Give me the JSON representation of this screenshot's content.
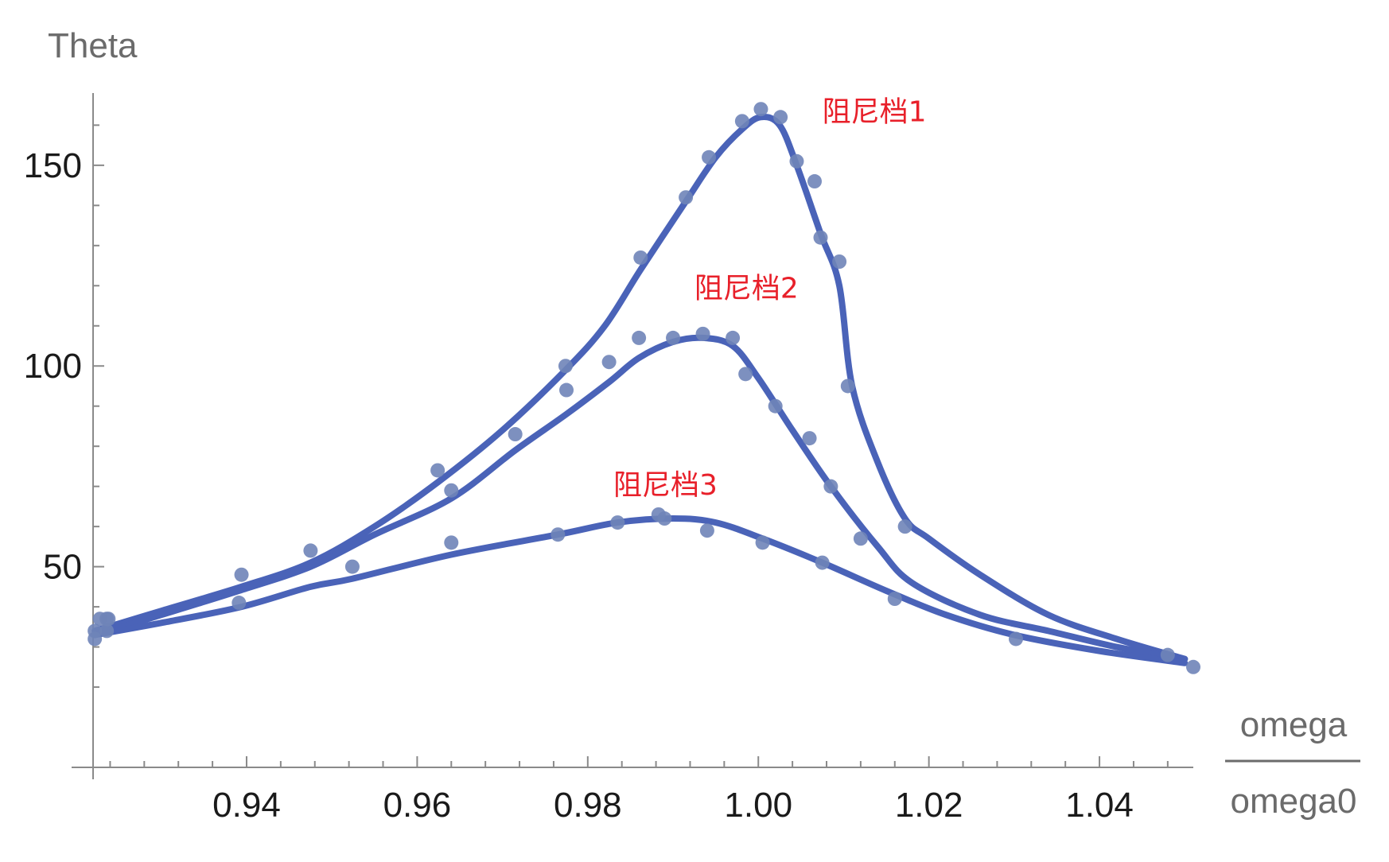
{
  "chart_data": {
    "type": "line",
    "title": "",
    "ylabel": "Theta",
    "xlabel_numerator": "omega",
    "xlabel_denominator": "omega0",
    "xlim": [
      0.922,
      1.051
    ],
    "ylim": [
      0,
      168
    ],
    "x_ticks": [
      0.94,
      0.96,
      0.98,
      1.0,
      1.02,
      1.04
    ],
    "x_tick_labels": [
      "0.94",
      "0.96",
      "0.98",
      "1.00",
      "1.02",
      "1.04"
    ],
    "y_ticks": [
      50,
      100,
      150
    ],
    "y_tick_labels": [
      "50",
      "100",
      "150"
    ],
    "grid": false,
    "line_color": "#4a63b8",
    "point_color": "#6f84b8",
    "label_color": "#e8202a",
    "series": [
      {
        "name": "阻尼档1",
        "label_at": [
          1.0075,
          161
        ],
        "points": [
          [
            0.9222,
            32
          ],
          [
            0.9228,
            37
          ],
          [
            0.9238,
            37
          ],
          [
            0.9394,
            48
          ],
          [
            0.9475,
            54
          ],
          [
            0.9624,
            74
          ],
          [
            0.9774,
            100
          ],
          [
            0.9862,
            127
          ],
          [
            0.9915,
            142
          ],
          [
            0.9942,
            152
          ],
          [
            0.9981,
            161
          ],
          [
            1.0003,
            164
          ],
          [
            1.0026,
            162
          ],
          [
            1.0045,
            151
          ],
          [
            1.0066,
            146
          ],
          [
            1.0073,
            132
          ],
          [
            1.0095,
            126
          ],
          [
            1.0105,
            95
          ],
          [
            1.0172,
            60
          ]
        ],
        "line": [
          [
            0.9222,
            34
          ],
          [
            0.93,
            39
          ],
          [
            0.9394,
            45
          ],
          [
            0.9475,
            51
          ],
          [
            0.955,
            60
          ],
          [
            0.9624,
            71
          ],
          [
            0.97,
            84
          ],
          [
            0.9774,
            99
          ],
          [
            0.982,
            110
          ],
          [
            0.9862,
            124
          ],
          [
            0.9915,
            141
          ],
          [
            0.995,
            152
          ],
          [
            0.9981,
            159
          ],
          [
            1.0003,
            162
          ],
          [
            1.0025,
            160
          ],
          [
            1.0045,
            150
          ],
          [
            1.0073,
            133
          ],
          [
            1.0095,
            120
          ],
          [
            1.011,
            95
          ],
          [
            1.014,
            76
          ],
          [
            1.0172,
            62
          ],
          [
            1.02,
            57
          ],
          [
            1.026,
            48
          ],
          [
            1.034,
            38
          ],
          [
            1.042,
            32
          ],
          [
            1.05,
            27
          ]
        ]
      },
      {
        "name": "阻尼档2",
        "label_at": [
          0.9925,
          117
        ],
        "points": [
          [
            0.9236,
            37
          ],
          [
            0.9391,
            41
          ],
          [
            0.964,
            69
          ],
          [
            0.9715,
            83
          ],
          [
            0.9775,
            94
          ],
          [
            0.9825,
            101
          ],
          [
            0.986,
            107
          ],
          [
            0.99,
            107
          ],
          [
            0.9935,
            108
          ],
          [
            0.997,
            107
          ],
          [
            0.9985,
            98
          ],
          [
            1.002,
            90
          ],
          [
            1.006,
            82
          ],
          [
            1.0085,
            70
          ],
          [
            1.012,
            57
          ],
          [
            1.016,
            42
          ],
          [
            1.048,
            28
          ]
        ],
        "line": [
          [
            0.9222,
            33
          ],
          [
            0.93,
            38
          ],
          [
            0.9391,
            44
          ],
          [
            0.9475,
            50
          ],
          [
            0.955,
            58
          ],
          [
            0.964,
            67
          ],
          [
            0.9715,
            79
          ],
          [
            0.9775,
            88
          ],
          [
            0.9825,
            96
          ],
          [
            0.986,
            102
          ],
          [
            0.99,
            106
          ],
          [
            0.9935,
            107
          ],
          [
            0.997,
            105
          ],
          [
            1.0,
            97
          ],
          [
            1.004,
            84
          ],
          [
            1.0085,
            70
          ],
          [
            1.014,
            55
          ],
          [
            1.018,
            46
          ],
          [
            1.026,
            38
          ],
          [
            1.034,
            34
          ],
          [
            1.042,
            30
          ],
          [
            1.05,
            27
          ]
        ]
      },
      {
        "name": "阻尼档3",
        "label_at": [
          0.983,
          68
        ],
        "points": [
          [
            0.9222,
            34
          ],
          [
            0.9236,
            34
          ],
          [
            0.9524,
            50
          ],
          [
            0.964,
            56
          ],
          [
            0.9765,
            58
          ],
          [
            0.9835,
            61
          ],
          [
            0.9883,
            63
          ],
          [
            0.989,
            62
          ],
          [
            0.994,
            59
          ],
          [
            1.0005,
            56
          ],
          [
            1.0075,
            51
          ],
          [
            1.0302,
            32
          ],
          [
            1.051,
            25
          ]
        ],
        "line": [
          [
            0.9222,
            33
          ],
          [
            0.93,
            36
          ],
          [
            0.9394,
            40
          ],
          [
            0.9475,
            45
          ],
          [
            0.9524,
            47
          ],
          [
            0.964,
            53
          ],
          [
            0.9765,
            58
          ],
          [
            0.9835,
            61
          ],
          [
            0.99,
            62
          ],
          [
            0.995,
            61
          ],
          [
            1.0005,
            57
          ],
          [
            1.0075,
            51
          ],
          [
            1.015,
            44
          ],
          [
            1.022,
            38
          ],
          [
            1.03,
            33
          ],
          [
            1.04,
            29
          ],
          [
            1.05,
            26
          ]
        ]
      }
    ]
  }
}
